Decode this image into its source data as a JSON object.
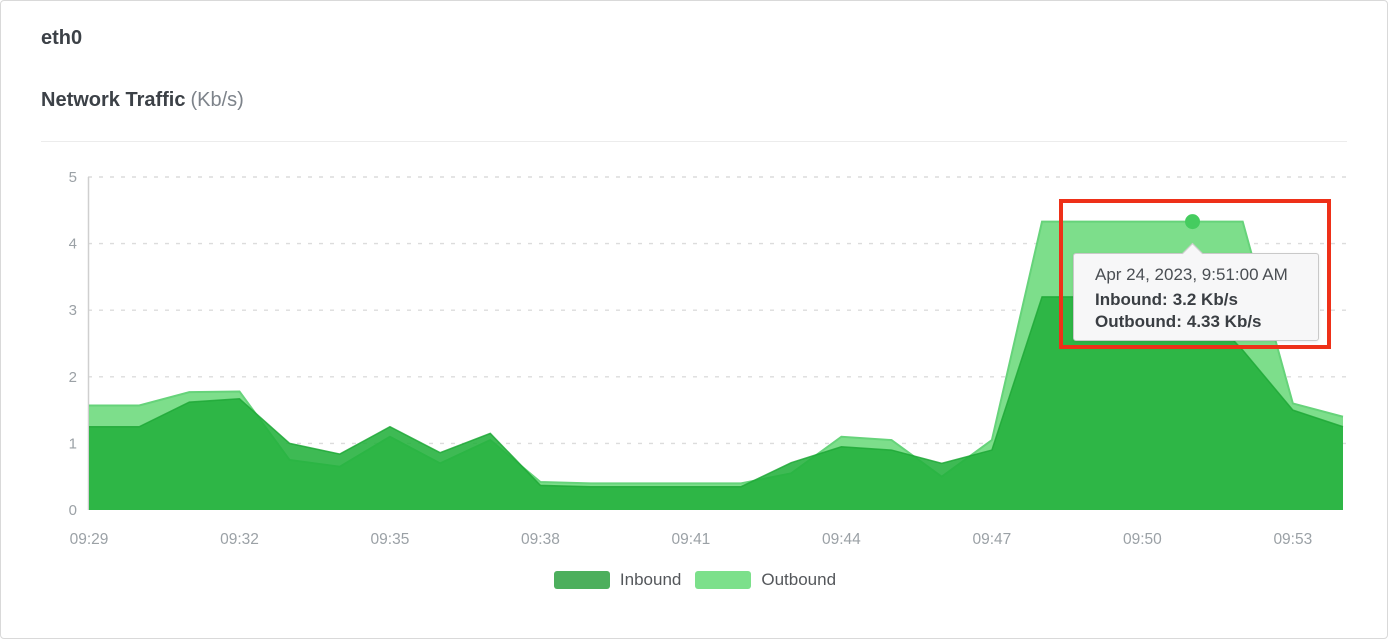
{
  "card": {
    "interface_name": "eth0",
    "chart_title": "Network Traffic",
    "chart_unit": "(Kb/s)"
  },
  "chart_data": {
    "type": "area",
    "title": "Network Traffic (Kb/s)",
    "x": [
      "09:29",
      "09:30",
      "09:31",
      "09:32",
      "09:33",
      "09:34",
      "09:35",
      "09:36",
      "09:37",
      "09:38",
      "09:39",
      "09:40",
      "09:41",
      "09:42",
      "09:43",
      "09:44",
      "09:45",
      "09:46",
      "09:47",
      "09:48",
      "09:49",
      "09:50",
      "09:51",
      "09:52",
      "09:53",
      "09:54"
    ],
    "x_tick_labels": [
      "09:29",
      "09:32",
      "09:35",
      "09:38",
      "09:41",
      "09:44",
      "09:47",
      "09:50",
      "09:53"
    ],
    "yticks": [
      "0",
      "1",
      "2",
      "3",
      "4",
      "5"
    ],
    "ylim": [
      0,
      5
    ],
    "grid": "horizontal-dashed",
    "legend_position": "bottom",
    "series": [
      {
        "name": "Inbound",
        "color": "#23b13c",
        "values": [
          1.25,
          1.25,
          1.62,
          1.67,
          1.0,
          0.84,
          1.25,
          0.86,
          1.15,
          0.37,
          0.35,
          0.35,
          0.35,
          0.35,
          0.71,
          0.95,
          0.9,
          0.7,
          0.9,
          3.2,
          3.2,
          3.2,
          3.2,
          2.4,
          1.5,
          1.25
        ]
      },
      {
        "name": "Outbound",
        "color": "#7dde8b",
        "values": [
          1.57,
          1.57,
          1.77,
          1.78,
          0.75,
          0.65,
          1.1,
          0.7,
          1.05,
          0.42,
          0.4,
          0.4,
          0.4,
          0.4,
          0.55,
          1.1,
          1.05,
          0.5,
          1.05,
          4.33,
          4.33,
          4.33,
          4.33,
          4.33,
          1.6,
          1.4
        ]
      }
    ]
  },
  "tooltip": {
    "timestamp": "Apr 24, 2023, 9:51:00 AM",
    "inbound_label": "Inbound:",
    "inbound_value": "3.2 Kb/s",
    "outbound_label": "Outbound:",
    "outbound_value": "4.33 Kb/s",
    "point_time": "09:51",
    "marker_series": "Outbound",
    "marker_value": 4.33,
    "marker_color": "#45cc5f"
  },
  "annotation": {
    "type": "highlight-box",
    "color": "#ee3018"
  },
  "legend": {
    "items": [
      {
        "label": "Inbound",
        "color": "#4daf5d"
      },
      {
        "label": "Outbound",
        "color": "#7ce08b"
      }
    ]
  },
  "colors": {
    "axis_text": "#9ba1a6",
    "gridline": "#dcdcdc",
    "axis_line": "#cfcfcf",
    "tooltip_background": "#f7f7f8",
    "tooltip_border": "#c9c9c9"
  }
}
